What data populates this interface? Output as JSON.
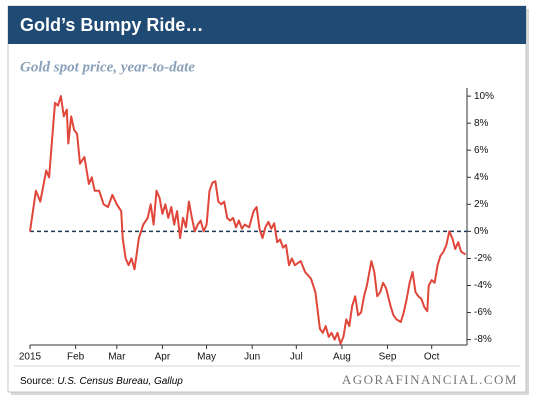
{
  "chart_data": {
    "type": "line",
    "title": "Gold’s Bumpy Ride…",
    "subtitle": "Gold spot price, year-to-date",
    "source_label": "Source:",
    "source": "U.S. Census Bureau, Gallup",
    "brand": "AGORAFINANCIAL.COM",
    "color": "#e0463a",
    "x": [
      1,
      5,
      8,
      12,
      14,
      18,
      20,
      22,
      24,
      26,
      27,
      29,
      31,
      33,
      35,
      38,
      41,
      43,
      45,
      48,
      51,
      54,
      57,
      60,
      63,
      64,
      66,
      68,
      70,
      72,
      75,
      78,
      81,
      83,
      85,
      87,
      89,
      91,
      93,
      95,
      97,
      99,
      101,
      103,
      105,
      107,
      109,
      111,
      113,
      115,
      117,
      119,
      121,
      123,
      125,
      127,
      129,
      131,
      133,
      135,
      137,
      139,
      141,
      143,
      145,
      147,
      150,
      153,
      155,
      157,
      159,
      161,
      163,
      165,
      167,
      169,
      171,
      173,
      175,
      177,
      179,
      181,
      185,
      188,
      192,
      195,
      198,
      200,
      202,
      204,
      206,
      208,
      210,
      212,
      214,
      216,
      218,
      220,
      222,
      224,
      226,
      228,
      230,
      233,
      235,
      237,
      239,
      241,
      243,
      246,
      248,
      250,
      253,
      255,
      257,
      259,
      261,
      263,
      265,
      267,
      269,
      271,
      272,
      274,
      276,
      278,
      280,
      282,
      284,
      286,
      288,
      290,
      292,
      294,
      297
    ],
    "values": [
      0,
      3,
      2.2,
      4.5,
      4,
      9.5,
      9.3,
      10,
      8.5,
      9,
      6.5,
      8.5,
      7.5,
      7.2,
      5,
      5.5,
      3.5,
      4,
      3,
      3,
      2,
      1.8,
      2.7,
      2,
      1.5,
      -0.5,
      -2,
      -2.5,
      -2,
      -2.8,
      -0.5,
      0.5,
      1,
      2,
      0.5,
      3,
      2.5,
      1.3,
      2,
      1,
      1.8,
      0.5,
      1.5,
      -0.5,
      1,
      0.3,
      2.2,
      1,
      0,
      0.5,
      0.8,
      0,
      0.5,
      3,
      3.6,
      3.7,
      2.2,
      2,
      2.2,
      1,
      0.8,
      1,
      0.3,
      0.8,
      0.2,
      0.5,
      0.3,
      1.5,
      1.8,
      0.2,
      -0.5,
      0.3,
      0.7,
      0.2,
      0.6,
      -0.8,
      -0.6,
      -1.2,
      -1,
      -2.5,
      -2,
      -2.5,
      -2.2,
      -3,
      -3.5,
      -4.5,
      -7.2,
      -7.5,
      -7,
      -7.8,
      -7.5,
      -8,
      -7.5,
      -8.3,
      -7.8,
      -6.5,
      -7,
      -5.5,
      -4.8,
      -6.2,
      -6,
      -4.8,
      -4,
      -2.2,
      -3,
      -4.8,
      -4.5,
      -3.8,
      -4.2,
      -5.5,
      -6.2,
      -6.5,
      -6.7,
      -6,
      -5,
      -3.8,
      -3,
      -4.5,
      -4.8,
      -5,
      -5.6,
      -5.9,
      -4,
      -3.6,
      -3.8,
      -2.5,
      -1.8,
      -1.5,
      -1,
      0,
      -0.5,
      -1.3,
      -0.8,
      -1.5,
      -1.7
    ],
    "xlim": [
      1,
      298
    ],
    "xticks": [
      {
        "value": 1,
        "label": "2015"
      },
      {
        "value": 32,
        "label": "Feb"
      },
      {
        "value": 60,
        "label": "Mar"
      },
      {
        "value": 91,
        "label": "Apr"
      },
      {
        "value": 121,
        "label": "May"
      },
      {
        "value": 152,
        "label": "Jun"
      },
      {
        "value": 182,
        "label": "Jul"
      },
      {
        "value": 213,
        "label": "Aug"
      },
      {
        "value": 244,
        "label": "Sep"
      },
      {
        "value": 274,
        "label": "Oct"
      }
    ],
    "ylim": [
      -8.4,
      10.6
    ],
    "yticks": [
      {
        "value": 10,
        "label": "10%"
      },
      {
        "value": 8,
        "label": "8%"
      },
      {
        "value": 6,
        "label": "6%"
      },
      {
        "value": 4,
        "label": "4%"
      },
      {
        "value": 2,
        "label": "2%"
      },
      {
        "value": 0,
        "label": "0%"
      },
      {
        "value": -2,
        "label": "-2%"
      },
      {
        "value": -4,
        "label": "-4%"
      },
      {
        "value": -6,
        "label": "-6%"
      },
      {
        "value": -8,
        "label": "-8%"
      }
    ],
    "reference_line": {
      "value": 0,
      "style": "dashed",
      "color": "#1f3b57"
    }
  }
}
